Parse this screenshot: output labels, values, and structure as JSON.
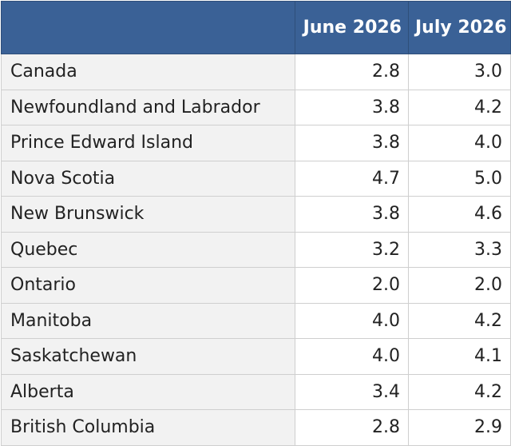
{
  "chart_data": {
    "type": "table",
    "columns": [
      "",
      "June 2026",
      "July 2026"
    ],
    "rows": [
      {
        "region": "Canada",
        "values": [
          "2.8",
          "3.0"
        ]
      },
      {
        "region": "Newfoundland and Labrador",
        "values": [
          "3.8",
          "4.2"
        ]
      },
      {
        "region": "Prince Edward Island",
        "values": [
          "3.8",
          "4.0"
        ]
      },
      {
        "region": "Nova Scotia",
        "values": [
          "4.7",
          "5.0"
        ]
      },
      {
        "region": "New Brunswick",
        "values": [
          "3.8",
          "4.6"
        ]
      },
      {
        "region": "Quebec",
        "values": [
          "3.2",
          "3.3"
        ]
      },
      {
        "region": "Ontario",
        "values": [
          "2.0",
          "2.0"
        ]
      },
      {
        "region": "Manitoba",
        "values": [
          "4.0",
          "4.2"
        ]
      },
      {
        "region": "Saskatchewan",
        "values": [
          "4.0",
          "4.1"
        ]
      },
      {
        "region": "Alberta",
        "values": [
          "3.4",
          "4.2"
        ]
      },
      {
        "region": "British Columbia",
        "values": [
          "2.8",
          "2.9"
        ]
      }
    ]
  },
  "colors": {
    "header_bg": "#3a6196",
    "header_text": "#ffffff",
    "region_bg": "#f2f2f2",
    "border": "#cfcfcf"
  }
}
